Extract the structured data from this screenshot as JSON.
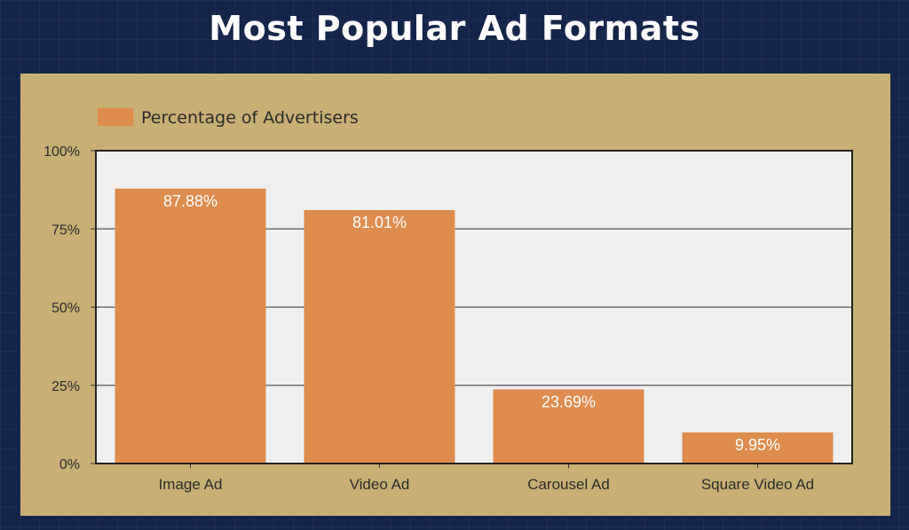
{
  "chart_data": {
    "type": "bar",
    "title": "Most Popular Ad Formats",
    "categories": [
      "Image Ad",
      "Video Ad",
      "Carousel Ad",
      "Square Video Ad"
    ],
    "series": [
      {
        "name": "Percentage of Advertisers",
        "values": [
          87.88,
          81.01,
          23.69,
          9.95
        ],
        "data_labels": [
          "87.88%",
          "81.01%",
          "23.69%",
          "9.95%"
        ]
      }
    ],
    "ylim": [
      0,
      100
    ],
    "yticks": [
      0,
      25,
      50,
      75,
      100
    ],
    "ytick_labels": [
      "0%",
      "25%",
      "50%",
      "75%",
      "100%"
    ],
    "grid": true,
    "legend_position": "top-left",
    "colors": {
      "bar": "#de8c4e",
      "plot_background": "#efeff0",
      "panel_background": "#c8af74",
      "page_background": "#14254a",
      "gridline": "#555555"
    }
  }
}
